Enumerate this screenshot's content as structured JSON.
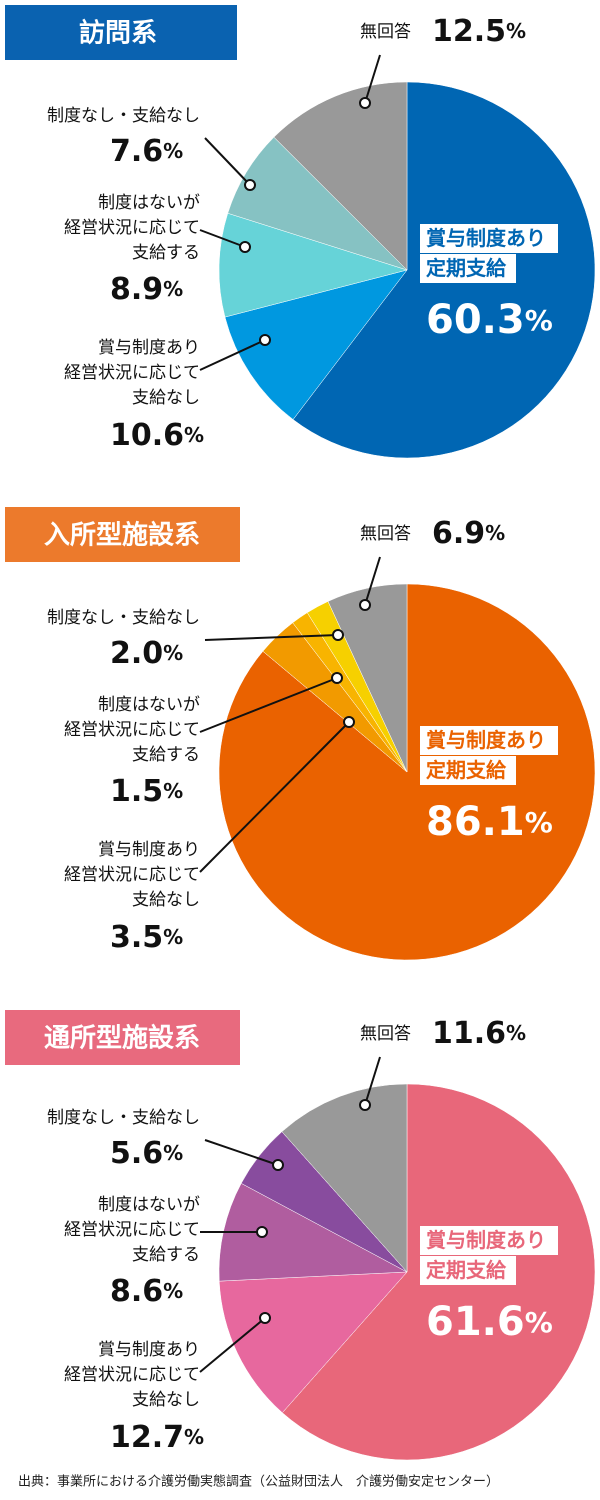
{
  "chart_data": [
    {
      "type": "pie",
      "title": "訪問系",
      "title_color": "#0a62b0",
      "categories": [
        "賞与制度あり\n定期支給",
        "賞与制度あり\n経営状況に応じて\n支給なし",
        "制度はないが\n経営状況に応じて\n支給する",
        "制度なし・支給なし",
        "無回答"
      ],
      "values": [
        60.3,
        10.6,
        8.9,
        7.6,
        12.5
      ],
      "value_labels": [
        "60.3%",
        "10.6%",
        "8.9%",
        "7.6%",
        "12.5%"
      ],
      "colors": [
        "#0066b3",
        "#0098e0",
        "#66d3d8",
        "#86c2c3",
        "#999999"
      ]
    },
    {
      "type": "pie",
      "title": "入所型施設系",
      "title_color": "#ec7a2c",
      "categories": [
        "賞与制度あり\n定期支給",
        "賞与制度あり\n経営状況に応じて\n支給なし",
        "制度はないが\n経営状況に応じて\n支給する",
        "制度なし・支給なし",
        "無回答"
      ],
      "values": [
        86.1,
        3.5,
        1.5,
        2.0,
        6.9
      ],
      "value_labels": [
        "86.1%",
        "3.5%",
        "1.5%",
        "2.0%",
        "6.9%"
      ],
      "colors": [
        "#ea6200",
        "#f29a00",
        "#f8b400",
        "#f6d000",
        "#999999"
      ]
    },
    {
      "type": "pie",
      "title": "通所型施設系",
      "title_color": "#e86a7e",
      "categories": [
        "賞与制度あり\n定期支給",
        "賞与制度あり\n経営状況に応じて\n支給なし",
        "制度はないが\n経営状況に応じて\n支給する",
        "制度なし・支給なし",
        "無回答"
      ],
      "values": [
        61.6,
        12.7,
        8.6,
        5.6,
        11.6
      ],
      "value_labels": [
        "61.6%",
        "12.7%",
        "8.6%",
        "5.6%",
        "11.6%"
      ],
      "colors": [
        "#e8677a",
        "#e7689e",
        "#b05d9f",
        "#884c9e",
        "#999999"
      ]
    }
  ],
  "source": "出典：事業所における介護労働実態調査（公益財団法人　介護労働安定センター）"
}
